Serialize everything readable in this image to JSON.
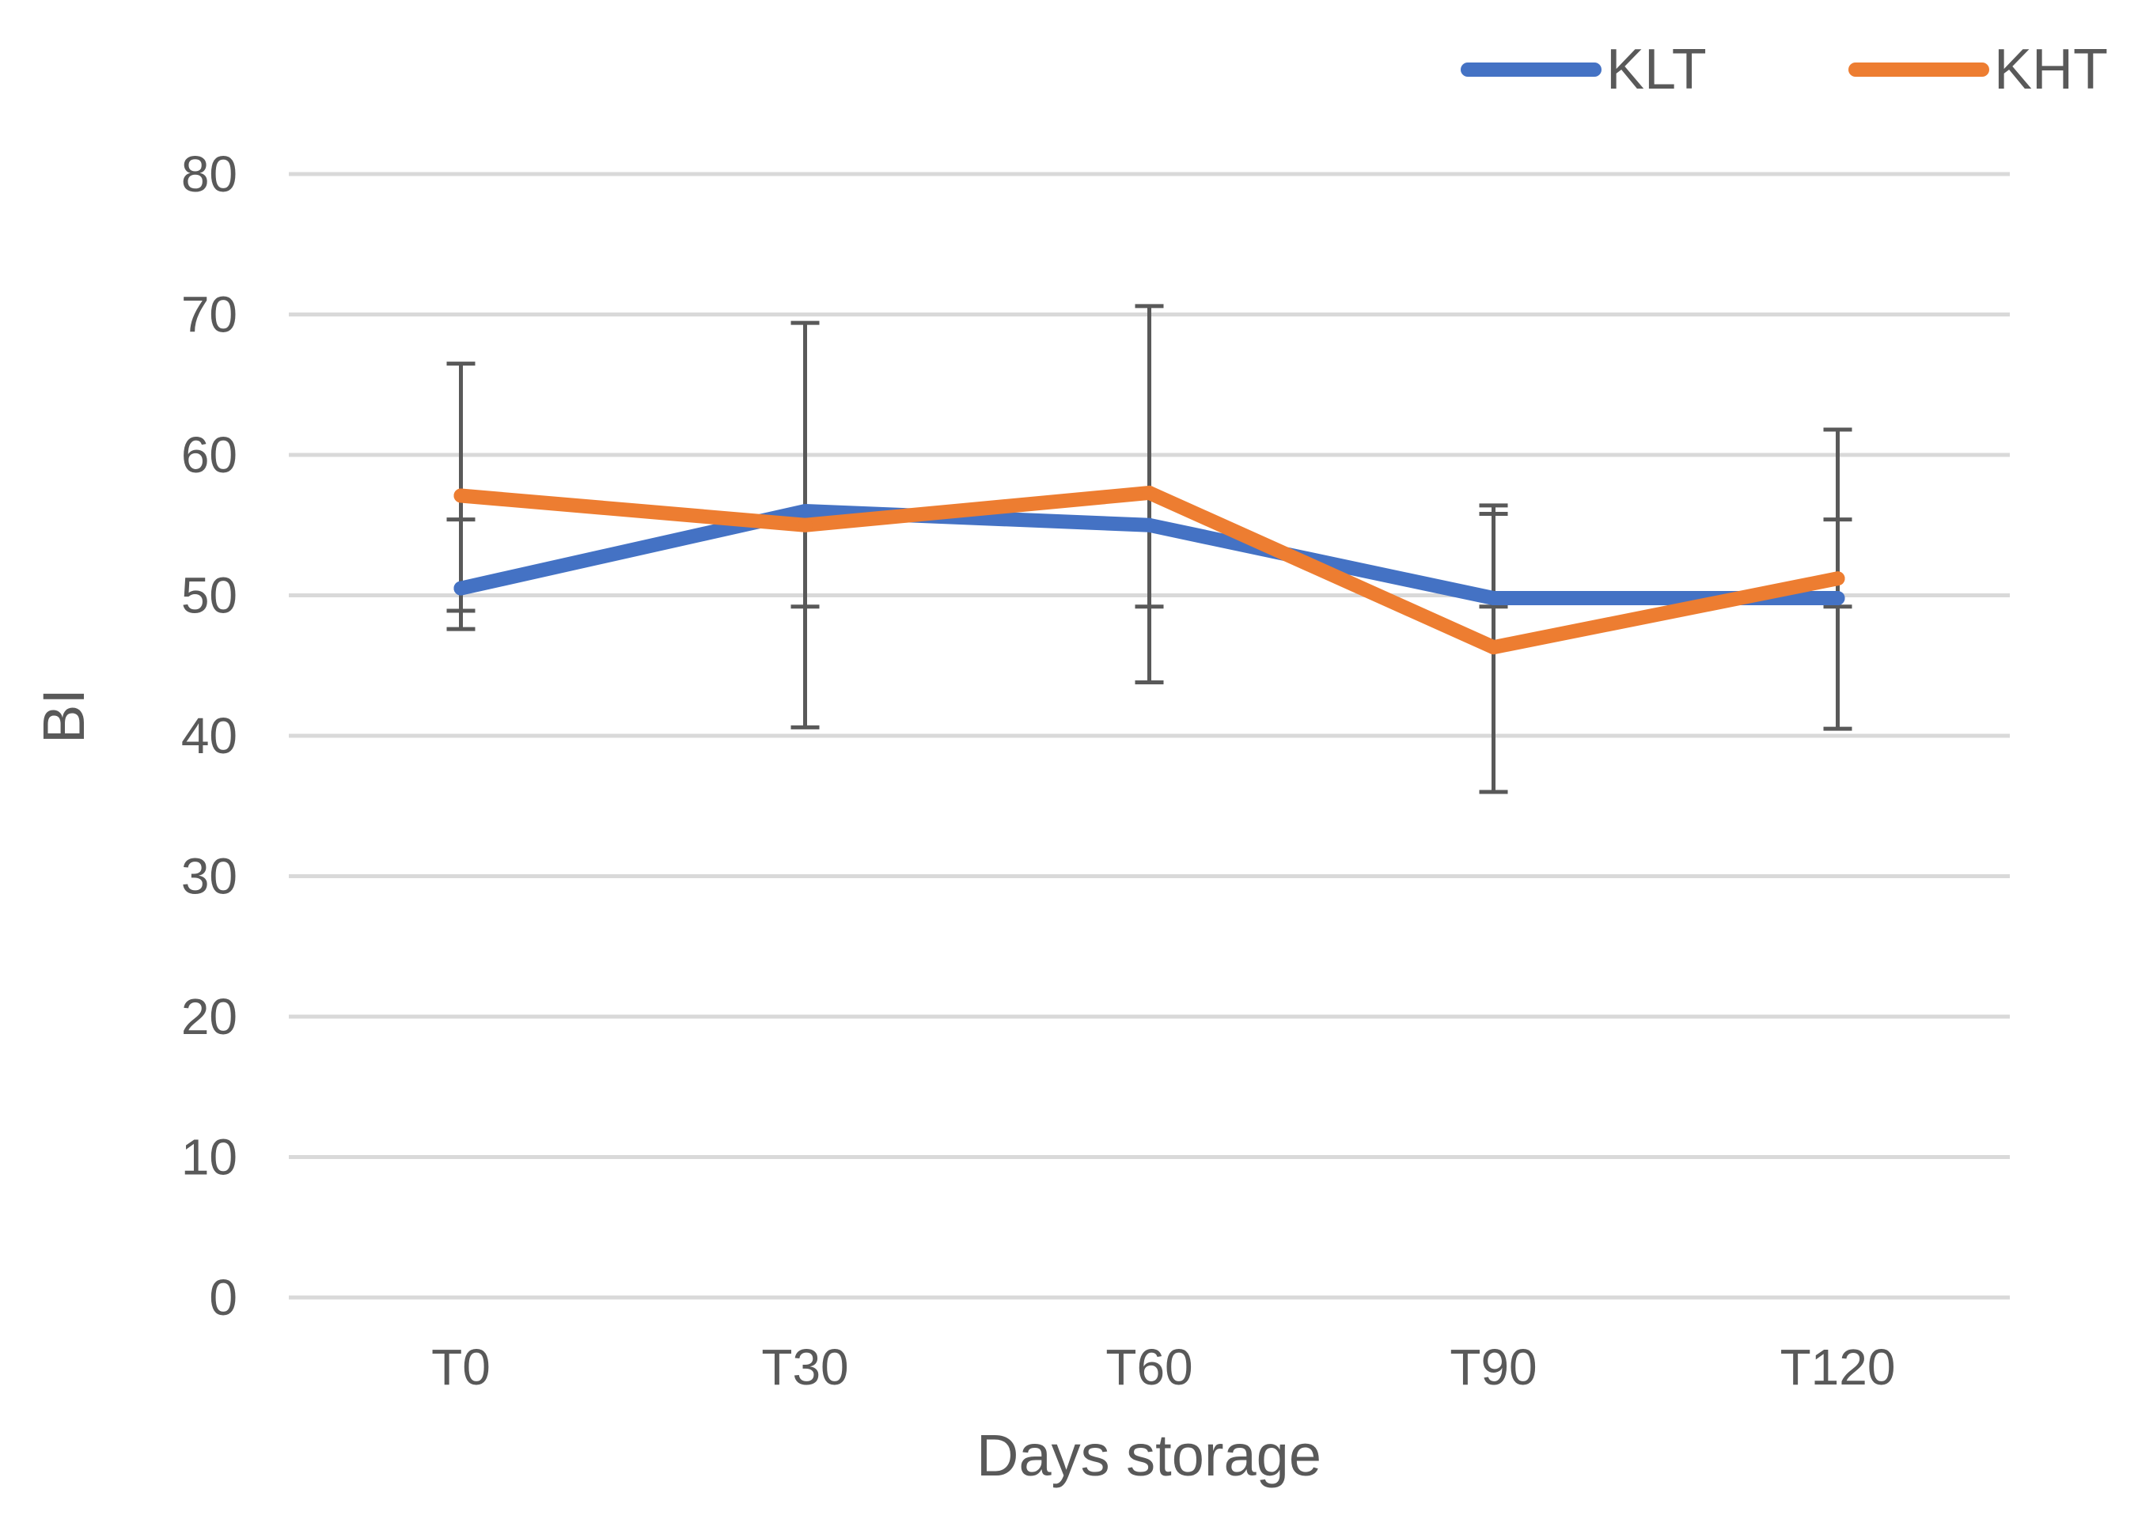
{
  "chart_data": {
    "type": "line",
    "title": "",
    "xlabel": "Days storage",
    "ylabel": "BI",
    "categories": [
      "T0",
      "T30",
      "T60",
      "T90",
      "T120"
    ],
    "ylim": [
      0,
      80
    ],
    "yticks": [
      0,
      10,
      20,
      30,
      40,
      50,
      60,
      70,
      80
    ],
    "grid": true,
    "legend_position": "top-right",
    "series": [
      {
        "name": "KLT",
        "color": "#4472c4",
        "values": [
          50.5,
          56.0,
          55.0,
          49.8,
          49.8
        ],
        "error_low": [
          47.6,
          49.2,
          49.2,
          49.2,
          49.2
        ],
        "error_high": [
          55.4,
          56.0,
          55.0,
          56.4,
          55.4
        ]
      },
      {
        "name": "KHT",
        "color": "#ed7d31",
        "values": [
          57.1,
          55.0,
          57.3,
          46.3,
          51.2
        ],
        "error_low": [
          48.9,
          40.6,
          43.8,
          36.0,
          40.5
        ],
        "error_high": [
          66.5,
          69.4,
          70.6,
          55.8,
          61.8
        ]
      }
    ],
    "error_bar_color": "#595959",
    "grid_color": "#d9d9d9"
  }
}
